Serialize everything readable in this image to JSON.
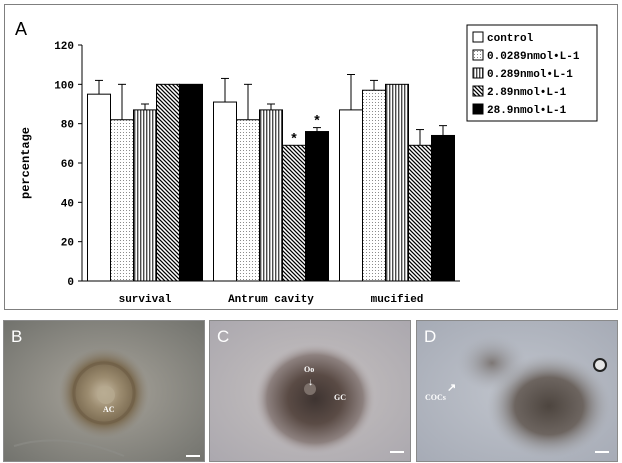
{
  "figure": {
    "chart_panel_label": "A",
    "photos": [
      {
        "label": "B",
        "annotations": [
          "AC"
        ]
      },
      {
        "label": "C",
        "annotations": [
          "Oo",
          "GC"
        ]
      },
      {
        "label": "D",
        "annotations": [
          "COCs"
        ]
      }
    ]
  },
  "chart_data": {
    "type": "bar",
    "title": "",
    "xlabel": "",
    "ylabel": "percentage",
    "ylim": [
      0,
      120
    ],
    "yticks": [
      0,
      20,
      40,
      60,
      80,
      100,
      120
    ],
    "grid": false,
    "legend_position": "top-right",
    "categories": [
      "survival",
      "Antrum cavity",
      "mucified"
    ],
    "series": [
      {
        "name": "control",
        "pattern": "white",
        "values": [
          95,
          91,
          87
        ],
        "errors": [
          7,
          12,
          18
        ],
        "significant": [
          false,
          false,
          false
        ]
      },
      {
        "name": "0.0289nmol•L-1",
        "pattern": "dots",
        "values": [
          82,
          82,
          97
        ],
        "errors": [
          18,
          18,
          5
        ],
        "significant": [
          false,
          false,
          false
        ]
      },
      {
        "name": "0.289nmol•L-1",
        "pattern": "vertical-lines",
        "values": [
          87,
          87,
          100
        ],
        "errors": [
          3,
          3,
          0
        ],
        "significant": [
          false,
          false,
          false
        ]
      },
      {
        "name": "2.89nmol•L-1",
        "pattern": "diagonal",
        "values": [
          100,
          69,
          69
        ],
        "errors": [
          0,
          0,
          8
        ],
        "significant": [
          false,
          true,
          false
        ]
      },
      {
        "name": "28.9nmol•L-1",
        "pattern": "black",
        "values": [
          100,
          76,
          74
        ],
        "errors": [
          0,
          2,
          5
        ],
        "significant": [
          false,
          true,
          false
        ]
      }
    ],
    "significance_marker": "*"
  }
}
